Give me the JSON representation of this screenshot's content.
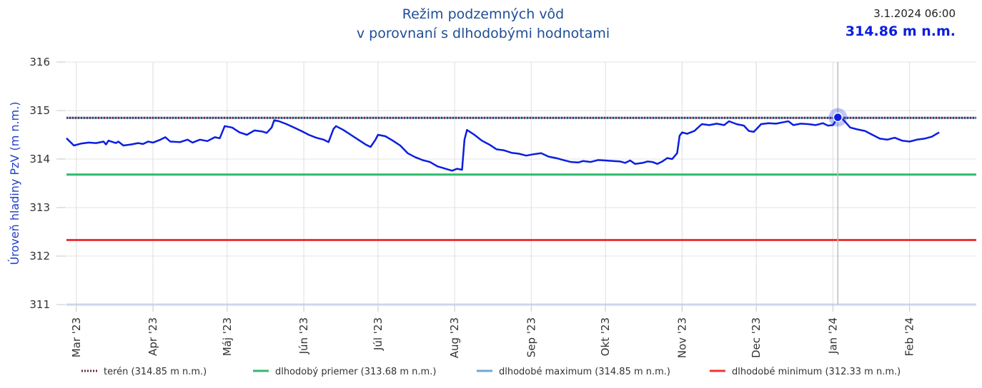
{
  "header": {
    "title_line1": "Režim podzemných vôd",
    "title_line2": "v porovnaní s dlhodobými hodnotami",
    "current_time": "3.1.2024 06:00",
    "current_value": "314.86 m n.m."
  },
  "chart_data": {
    "type": "line",
    "title": "Režim podzemných vôd v porovnaní s dlhodobými hodnotami",
    "ylabel": "Úroveň hladiny PzV (m n.m.)",
    "xlabel": "",
    "ylim": [
      311,
      316
    ],
    "yticks": [
      311,
      312,
      313,
      314,
      315,
      316
    ],
    "xlim": [
      "2023-02-25",
      "2024-02-28"
    ],
    "xticks": [
      {
        "date": "2023-03-01",
        "label": "Mar '23"
      },
      {
        "date": "2023-04-01",
        "label": "Apr '23"
      },
      {
        "date": "2023-05-01",
        "label": "Máj '23"
      },
      {
        "date": "2023-06-01",
        "label": "Jún '23"
      },
      {
        "date": "2023-07-01",
        "label": "Júl '23"
      },
      {
        "date": "2023-08-01",
        "label": "Aug '23"
      },
      {
        "date": "2023-09-01",
        "label": "Sep '23"
      },
      {
        "date": "2023-10-01",
        "label": "Okt '23"
      },
      {
        "date": "2023-11-01",
        "label": "Nov '23"
      },
      {
        "date": "2023-12-01",
        "label": "Dec '23"
      },
      {
        "date": "2024-01-01",
        "label": "Jan '24"
      },
      {
        "date": "2024-02-01",
        "label": "Feb '24"
      }
    ],
    "grid": true,
    "legend_position": "bottom",
    "reference_lines": [
      {
        "name": "terén (314.85 m n.m.)",
        "value": 314.85,
        "color": "#6b2d3a",
        "style": "dotted"
      },
      {
        "name": "dlhodobý priemer (313.68 m n.m.)",
        "value": 313.68,
        "color": "#2dbb6b",
        "style": "solid"
      },
      {
        "name": "dlhodobé maximum (314.85 m n.m.)",
        "value": 314.85,
        "color": "#6ea5d9",
        "style": "solid"
      },
      {
        "name": "dlhodobé minimum (312.33 m n.m.)",
        "value": 312.33,
        "color": "#ee3535",
        "style": "solid"
      }
    ],
    "highlight": {
      "date": "2024-01-03",
      "value": 314.86
    },
    "series": [
      {
        "color": "#0a1ee0",
        "points": [
          [
            "2023-02-25",
            314.43
          ],
          [
            "2023-02-28",
            314.28
          ],
          [
            "2023-03-03",
            314.32
          ],
          [
            "2023-03-06",
            314.34
          ],
          [
            "2023-03-09",
            314.33
          ],
          [
            "2023-03-12",
            314.36
          ],
          [
            "2023-03-13",
            314.3
          ],
          [
            "2023-03-14",
            314.38
          ],
          [
            "2023-03-17",
            314.33
          ],
          [
            "2023-03-18",
            314.36
          ],
          [
            "2023-03-20",
            314.28
          ],
          [
            "2023-03-23",
            314.3
          ],
          [
            "2023-03-26",
            314.33
          ],
          [
            "2023-03-28",
            314.31
          ],
          [
            "2023-03-30",
            314.36
          ],
          [
            "2023-04-01",
            314.34
          ],
          [
            "2023-04-04",
            314.4
          ],
          [
            "2023-04-06",
            314.45
          ],
          [
            "2023-04-08",
            314.36
          ],
          [
            "2023-04-12",
            314.35
          ],
          [
            "2023-04-15",
            314.4
          ],
          [
            "2023-04-17",
            314.34
          ],
          [
            "2023-04-20",
            314.4
          ],
          [
            "2023-04-23",
            314.37
          ],
          [
            "2023-04-26",
            314.45
          ],
          [
            "2023-04-28",
            314.43
          ],
          [
            "2023-04-30",
            314.68
          ],
          [
            "2023-05-03",
            314.65
          ],
          [
            "2023-05-06",
            314.55
          ],
          [
            "2023-05-09",
            314.5
          ],
          [
            "2023-05-12",
            314.59
          ],
          [
            "2023-05-15",
            314.57
          ],
          [
            "2023-05-17",
            314.54
          ],
          [
            "2023-05-19",
            314.65
          ],
          [
            "2023-05-20",
            314.8
          ],
          [
            "2023-05-22",
            314.78
          ],
          [
            "2023-05-25",
            314.72
          ],
          [
            "2023-05-28",
            314.65
          ],
          [
            "2023-05-31",
            314.58
          ],
          [
            "2023-06-03",
            314.5
          ],
          [
            "2023-06-06",
            314.44
          ],
          [
            "2023-06-09",
            314.4
          ],
          [
            "2023-06-11",
            314.35
          ],
          [
            "2023-06-13",
            314.62
          ],
          [
            "2023-06-14",
            314.68
          ],
          [
            "2023-06-17",
            314.6
          ],
          [
            "2023-06-20",
            314.5
          ],
          [
            "2023-06-23",
            314.4
          ],
          [
            "2023-06-26",
            314.3
          ],
          [
            "2023-06-28",
            314.25
          ],
          [
            "2023-06-30",
            314.4
          ],
          [
            "2023-07-01",
            314.5
          ],
          [
            "2023-07-04",
            314.47
          ],
          [
            "2023-07-07",
            314.38
          ],
          [
            "2023-07-10",
            314.28
          ],
          [
            "2023-07-13",
            314.12
          ],
          [
            "2023-07-16",
            314.04
          ],
          [
            "2023-07-19",
            313.98
          ],
          [
            "2023-07-22",
            313.94
          ],
          [
            "2023-07-25",
            313.85
          ],
          [
            "2023-07-27",
            313.82
          ],
          [
            "2023-07-29",
            313.79
          ],
          [
            "2023-07-31",
            313.76
          ],
          [
            "2023-08-02",
            313.8
          ],
          [
            "2023-08-04",
            313.78
          ],
          [
            "2023-08-05",
            314.4
          ],
          [
            "2023-08-06",
            314.6
          ],
          [
            "2023-08-09",
            314.5
          ],
          [
            "2023-08-12",
            314.38
          ],
          [
            "2023-08-15",
            314.3
          ],
          [
            "2023-08-18",
            314.2
          ],
          [
            "2023-08-21",
            314.18
          ],
          [
            "2023-08-24",
            314.13
          ],
          [
            "2023-08-27",
            314.11
          ],
          [
            "2023-08-30",
            314.07
          ],
          [
            "2023-09-02",
            314.1
          ],
          [
            "2023-09-05",
            314.12
          ],
          [
            "2023-09-08",
            314.05
          ],
          [
            "2023-09-11",
            314.02
          ],
          [
            "2023-09-14",
            313.98
          ],
          [
            "2023-09-17",
            313.94
          ],
          [
            "2023-09-20",
            313.93
          ],
          [
            "2023-09-22",
            313.96
          ],
          [
            "2023-09-25",
            313.94
          ],
          [
            "2023-09-28",
            313.98
          ],
          [
            "2023-10-01",
            313.97
          ],
          [
            "2023-10-04",
            313.96
          ],
          [
            "2023-10-07",
            313.95
          ],
          [
            "2023-10-09",
            313.92
          ],
          [
            "2023-10-11",
            313.97
          ],
          [
            "2023-10-13",
            313.9
          ],
          [
            "2023-10-16",
            313.92
          ],
          [
            "2023-10-18",
            313.95
          ],
          [
            "2023-10-20",
            313.94
          ],
          [
            "2023-10-22",
            313.9
          ],
          [
            "2023-10-24",
            313.95
          ],
          [
            "2023-10-26",
            314.02
          ],
          [
            "2023-10-28",
            314.0
          ],
          [
            "2023-10-30",
            314.12
          ],
          [
            "2023-10-31",
            314.48
          ],
          [
            "2023-11-01",
            314.55
          ],
          [
            "2023-11-03",
            314.52
          ],
          [
            "2023-11-06",
            314.58
          ],
          [
            "2023-11-09",
            314.72
          ],
          [
            "2023-11-12",
            314.7
          ],
          [
            "2023-11-15",
            314.73
          ],
          [
            "2023-11-18",
            314.7
          ],
          [
            "2023-11-20",
            314.78
          ],
          [
            "2023-11-23",
            314.72
          ],
          [
            "2023-11-26",
            314.69
          ],
          [
            "2023-11-28",
            314.58
          ],
          [
            "2023-11-30",
            314.56
          ],
          [
            "2023-12-03",
            314.72
          ],
          [
            "2023-12-06",
            314.74
          ],
          [
            "2023-12-09",
            314.73
          ],
          [
            "2023-12-12",
            314.76
          ],
          [
            "2023-12-14",
            314.78
          ],
          [
            "2023-12-16",
            314.7
          ],
          [
            "2023-12-19",
            314.73
          ],
          [
            "2023-12-22",
            314.72
          ],
          [
            "2023-12-25",
            314.7
          ],
          [
            "2023-12-28",
            314.74
          ],
          [
            "2023-12-30",
            314.69
          ],
          [
            "2024-01-01",
            314.7
          ],
          [
            "2024-01-03",
            314.86
          ],
          [
            "2024-01-05",
            314.82
          ],
          [
            "2024-01-08",
            314.65
          ],
          [
            "2024-01-11",
            314.61
          ],
          [
            "2024-01-14",
            314.58
          ],
          [
            "2024-01-17",
            314.5
          ],
          [
            "2024-01-20",
            314.42
          ],
          [
            "2024-01-23",
            314.4
          ],
          [
            "2024-01-26",
            314.44
          ],
          [
            "2024-01-29",
            314.38
          ],
          [
            "2024-02-01",
            314.36
          ],
          [
            "2024-02-04",
            314.4
          ],
          [
            "2024-02-07",
            314.42
          ],
          [
            "2024-02-10",
            314.46
          ],
          [
            "2024-02-13",
            314.55
          ]
        ]
      }
    ]
  }
}
